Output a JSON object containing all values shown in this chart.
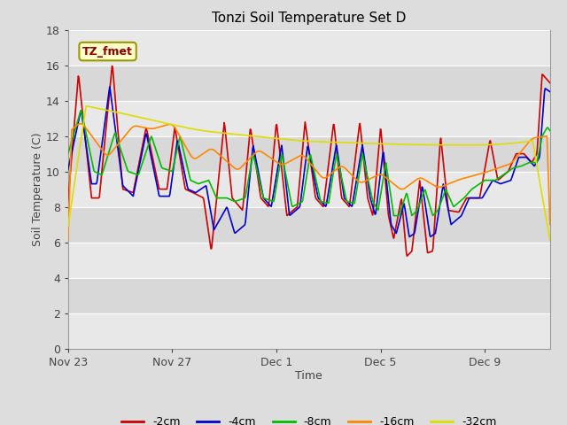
{
  "title": "Tonzi Soil Temperature Set D",
  "xlabel": "Time",
  "ylabel": "Soil Temperature (C)",
  "ylim": [
    0,
    18
  ],
  "yticks": [
    0,
    2,
    4,
    6,
    8,
    10,
    12,
    14,
    16,
    18
  ],
  "bg_color": "#dddddd",
  "plot_bg_color": "#ffffff",
  "legend_label": "TZ_fmet",
  "series_colors": {
    "-2cm": "#cc0000",
    "-4cm": "#0000cc",
    "-8cm": "#00bb00",
    "-16cm": "#ff8800",
    "-32cm": "#dddd00"
  },
  "line_width": 1.2,
  "xtick_labels": [
    "Nov 23",
    "Nov 27",
    "Dec 1",
    "Dec 5",
    "Dec 9"
  ],
  "xtick_positions": [
    0,
    4,
    8,
    12,
    16
  ],
  "xlim": [
    0,
    18.5
  ],
  "num_points": 800,
  "band_colors": [
    "#e8e8e8",
    "#d8d8d8"
  ]
}
